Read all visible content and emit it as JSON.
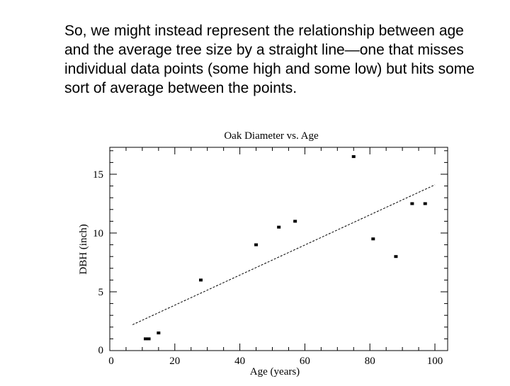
{
  "slide": {
    "caption": "So, we might instead represent the relationship between age and the average tree size by a straight line—one that misses individual data points (some high and some low) but hits some sort of average between the points."
  },
  "chart_data": {
    "type": "scatter",
    "title": "Oak Diameter vs. Age",
    "xlabel": "Age (years)",
    "ylabel": "DBH (inch)",
    "xlim": [
      0,
      100
    ],
    "ylim": [
      0,
      17
    ],
    "x_ticks": [
      0,
      20,
      40,
      60,
      80,
      100
    ],
    "y_ticks": [
      0,
      5,
      10,
      15
    ],
    "grid": false,
    "series": [
      {
        "points": [
          {
            "x": 11,
            "y": 1.0
          },
          {
            "x": 12,
            "y": 1.0
          },
          {
            "x": 15,
            "y": 1.5
          },
          {
            "x": 28,
            "y": 6.0
          },
          {
            "x": 45,
            "y": 9.0
          },
          {
            "x": 52,
            "y": 10.5
          },
          {
            "x": 57,
            "y": 11.0
          },
          {
            "x": 75,
            "y": 16.5
          },
          {
            "x": 81,
            "y": 9.5
          },
          {
            "x": 88,
            "y": 8.0
          },
          {
            "x": 93,
            "y": 12.5
          },
          {
            "x": 97,
            "y": 12.5
          }
        ]
      }
    ],
    "trend_line": {
      "x": [
        7,
        100
      ],
      "y": [
        2.2,
        14.1
      ],
      "style": "dashed"
    }
  }
}
